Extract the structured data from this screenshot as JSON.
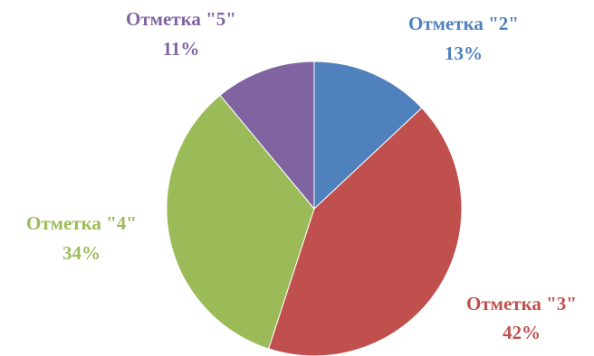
{
  "chart_data": {
    "type": "pie",
    "title": "",
    "start_angle_deg": 0,
    "direction": "clockwise",
    "legend": "none",
    "slices": [
      {
        "category": "Отметка \"2\"",
        "value": 13,
        "value_label": "13%",
        "color": "#4f81bd"
      },
      {
        "category": "Отметка \"3\"",
        "value": 42,
        "value_label": "42%",
        "color": "#c0504d"
      },
      {
        "category": "Отметка \"4\"",
        "value": 34,
        "value_label": "34%",
        "color": "#9bbb59"
      },
      {
        "category": "Отметка \"5\"",
        "value": 11,
        "value_label": "11%",
        "color": "#8064a2"
      }
    ]
  }
}
